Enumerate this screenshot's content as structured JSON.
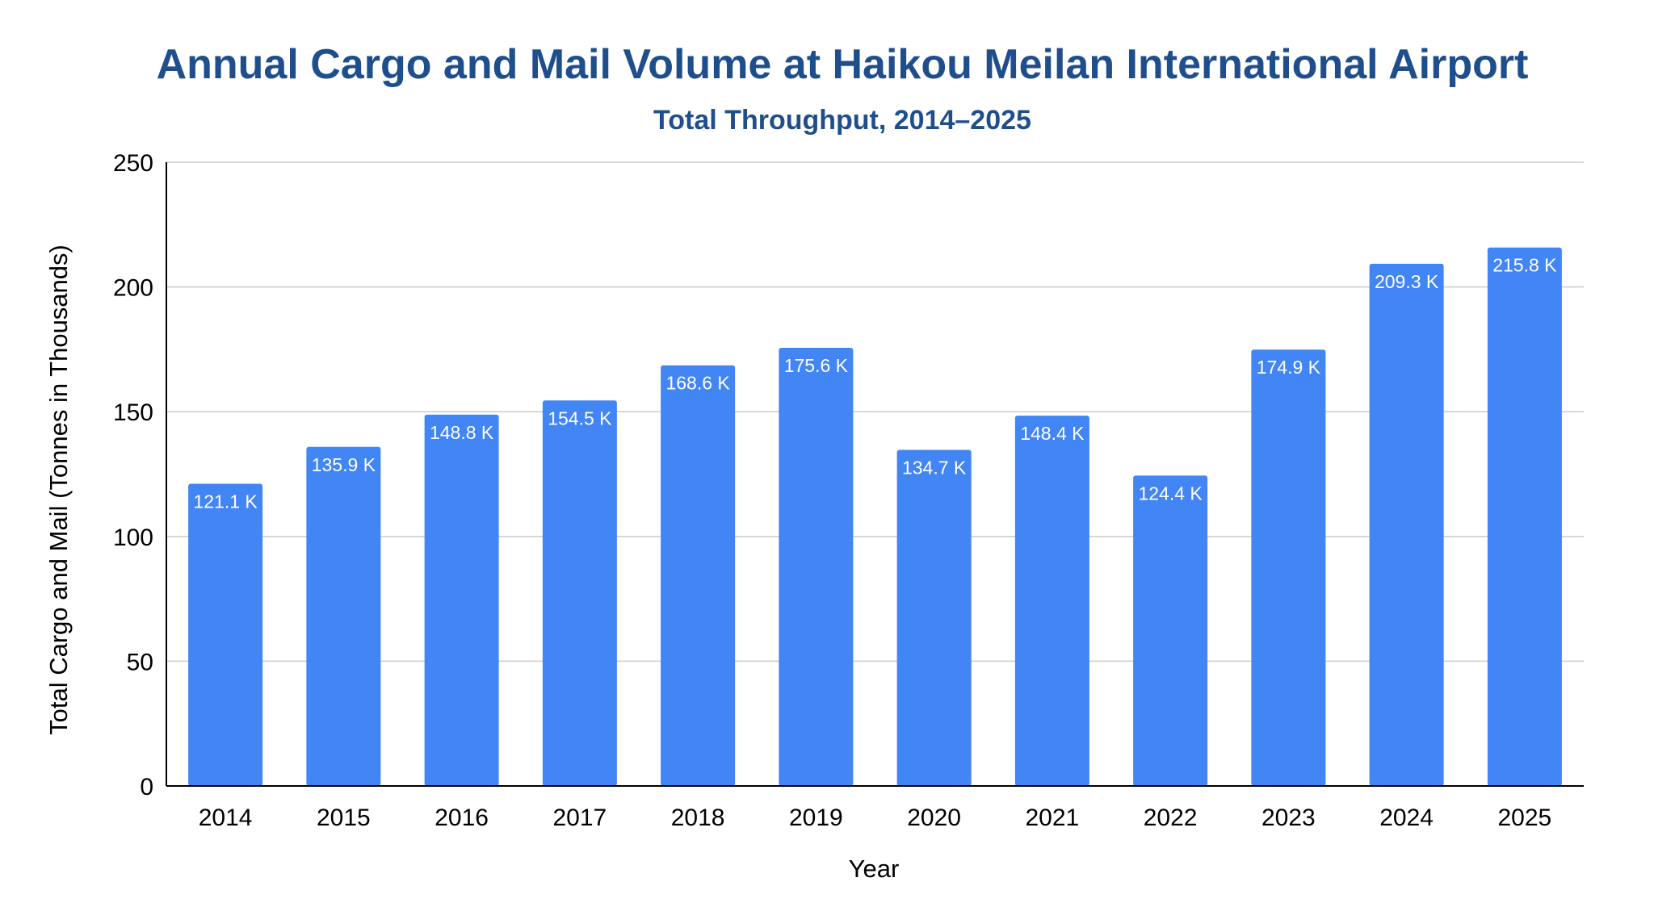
{
  "chart_data": {
    "type": "bar",
    "title": "Annual Cargo and Mail Volume at Haikou Meilan International Airport",
    "subtitle": "Total Throughput, 2014–2025",
    "xlabel": "Year",
    "ylabel": "Total Cargo and Mail (Tonnes in Thousands)",
    "categories": [
      "2014",
      "2015",
      "2016",
      "2017",
      "2018",
      "2019",
      "2020",
      "2021",
      "2022",
      "2023",
      "2024",
      "2025"
    ],
    "values": [
      121.1,
      135.9,
      148.8,
      154.5,
      168.6,
      175.6,
      134.7,
      148.4,
      124.4,
      174.9,
      209.3,
      215.8
    ],
    "data_labels": [
      "121.1 K",
      "135.9 K",
      "148.8 K",
      "154.5 K",
      "168.6 K",
      "175.6 K",
      "134.7 K",
      "148.4 K",
      "124.4 K",
      "174.9 K",
      "209.3 K",
      "215.8 K"
    ],
    "ylim": [
      0,
      250
    ],
    "yticks": [
      0,
      50,
      100,
      150,
      200,
      250
    ],
    "grid": true,
    "bar_color": "#4285f4",
    "title_color": "#1f4e8c"
  }
}
